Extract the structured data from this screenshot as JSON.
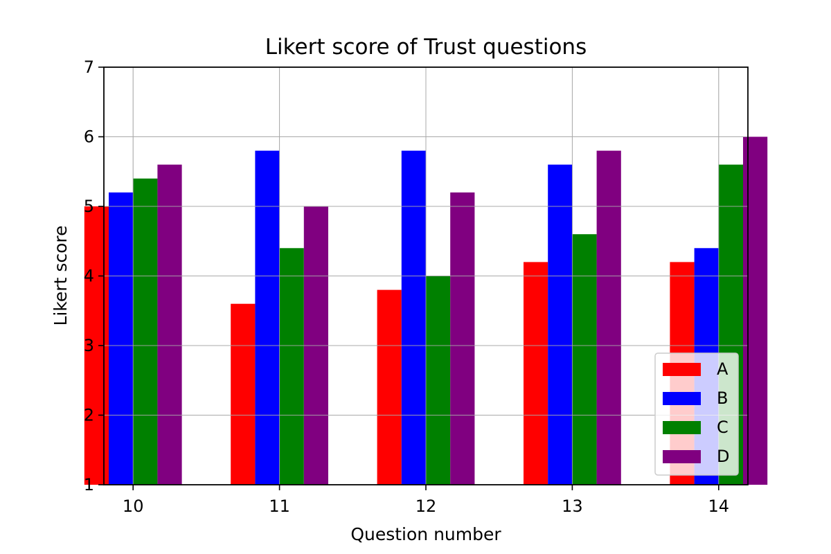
{
  "chart_data": {
    "type": "bar",
    "title": "Likert score of Trust questions",
    "xlabel": "Question number",
    "ylabel": "Likert score",
    "categories": [
      "10",
      "11",
      "12",
      "13",
      "14"
    ],
    "ylim": [
      1,
      7
    ],
    "yticks": [
      "1",
      "2",
      "3",
      "4",
      "5",
      "6",
      "7"
    ],
    "grid": true,
    "legend_position": "lower right",
    "series": [
      {
        "name": "A",
        "color": "#ff0000",
        "values": [
          5.0,
          3.6,
          3.8,
          4.2,
          4.2
        ]
      },
      {
        "name": "B",
        "color": "#0000ff",
        "values": [
          5.2,
          5.8,
          5.8,
          5.6,
          4.4
        ]
      },
      {
        "name": "C",
        "color": "#008000",
        "values": [
          5.4,
          4.4,
          4.0,
          4.6,
          5.6
        ]
      },
      {
        "name": "D",
        "color": "#800080",
        "values": [
          5.6,
          5.0,
          5.2,
          5.8,
          6.0
        ]
      }
    ]
  }
}
